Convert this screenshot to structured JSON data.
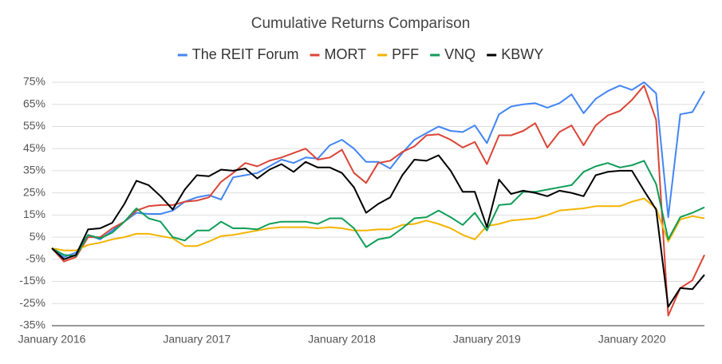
{
  "chart_data": {
    "type": "line",
    "title": "Cumulative Returns Comparison",
    "categories": [
      "January 2016",
      null,
      null,
      null,
      null,
      null,
      null,
      null,
      null,
      null,
      null,
      null,
      "January 2017",
      null,
      null,
      null,
      null,
      null,
      null,
      null,
      null,
      null,
      null,
      null,
      "January 2018",
      null,
      null,
      null,
      null,
      null,
      null,
      null,
      null,
      null,
      null,
      null,
      "January 2019",
      null,
      null,
      null,
      null,
      null,
      null,
      null,
      null,
      null,
      null,
      null,
      "January 2020",
      null,
      null,
      null,
      null,
      null,
      null
    ],
    "ylim": [
      -35,
      75
    ],
    "yticks": [
      {
        "value": -35,
        "label": "-35%"
      },
      {
        "value": -25,
        "label": "-25%"
      },
      {
        "value": -15,
        "label": "-15%"
      },
      {
        "value": -5,
        "label": "-5%"
      },
      {
        "value": 5,
        "label": "5%"
      },
      {
        "value": 15,
        "label": "15%"
      },
      {
        "value": 25,
        "label": "25%"
      },
      {
        "value": 35,
        "label": "35%"
      },
      {
        "value": 45,
        "label": "45%"
      },
      {
        "value": 55,
        "label": "55%"
      },
      {
        "value": 65,
        "label": "65%"
      },
      {
        "value": 75,
        "label": "75%"
      }
    ],
    "grid": true,
    "legend": "top",
    "series": [
      {
        "name": "The REIT Forum",
        "color": "#4285f4",
        "values": [
          0,
          -4,
          -2,
          6,
          4,
          8,
          12,
          16,
          15.5,
          15.5,
          17,
          21,
          23,
          24,
          22,
          32,
          33,
          34,
          37,
          40,
          38.5,
          41,
          40.5,
          46.5,
          49,
          45,
          39,
          39,
          36,
          43,
          49,
          52,
          55,
          53,
          52.5,
          55.5,
          47.5,
          60.5,
          64,
          65,
          65.5,
          63.5,
          65.5,
          69.5,
          61,
          67.5,
          71,
          73.5,
          71.5,
          75,
          70,
          14,
          60.5,
          61.5,
          71
        ]
      },
      {
        "name": "MORT",
        "color": "#db4437",
        "values": [
          0,
          -6,
          -4,
          5,
          5,
          9,
          12,
          17,
          19,
          19.5,
          19.5,
          21,
          21.5,
          23,
          30,
          34,
          38.5,
          37,
          39.5,
          41,
          43,
          45,
          40,
          41,
          44.5,
          34,
          29.5,
          38.5,
          39.5,
          43.5,
          46,
          51,
          51.5,
          49,
          45.5,
          48,
          38,
          51,
          51,
          53,
          56.5,
          45.5,
          52.5,
          55.5,
          46.5,
          55.5,
          60,
          62,
          67,
          73.5,
          58,
          -30.5,
          -18,
          -14.5,
          -3
        ]
      },
      {
        "name": "PFF",
        "color": "#f4b400",
        "values": [
          0,
          -1,
          -1,
          1.5,
          2.5,
          4,
          5,
          6.5,
          6.5,
          5.5,
          4.5,
          1,
          1,
          3,
          5.5,
          6,
          7,
          8,
          9,
          9.5,
          9.5,
          9.5,
          9,
          9.5,
          9,
          8,
          8,
          8.5,
          8.5,
          10.5,
          11,
          12.5,
          11,
          9,
          6,
          4,
          10,
          11,
          12.5,
          13,
          13.5,
          15,
          17,
          17.5,
          18,
          19,
          19,
          19,
          21,
          22.5,
          18,
          3,
          13,
          14.5,
          13.5
        ]
      },
      {
        "name": "VNQ",
        "color": "#0f9d58",
        "values": [
          0,
          -3,
          -3.5,
          6,
          4.5,
          7,
          12,
          18,
          13.5,
          12,
          5,
          3.5,
          8,
          8,
          12,
          9,
          9,
          8.5,
          11,
          12,
          12,
          12,
          11,
          13.5,
          13.5,
          9,
          0.5,
          4,
          5,
          9,
          13.5,
          14,
          17,
          14,
          10.5,
          16,
          8,
          19.5,
          20,
          25.5,
          25.5,
          26.5,
          27.5,
          28.5,
          34.5,
          37,
          38.5,
          36.5,
          37.5,
          39.5,
          29,
          4,
          14,
          16,
          18.5
        ]
      },
      {
        "name": "KBWY",
        "color": "#000000",
        "values": [
          0,
          -5,
          -3,
          8.5,
          9,
          11.5,
          20,
          30.5,
          28.5,
          23.5,
          17.5,
          26.5,
          33,
          32.5,
          35.5,
          35,
          36,
          31.5,
          35.5,
          38,
          34.5,
          39,
          36.5,
          36.5,
          34,
          27.5,
          16,
          20,
          23,
          33,
          40,
          39.5,
          42,
          35,
          25.5,
          25.5,
          9.5,
          31,
          24.5,
          26,
          25,
          23.5,
          26,
          25,
          23.5,
          33,
          34.5,
          35,
          35,
          26,
          17.5,
          -26.5,
          -18,
          -18.5,
          -12
        ]
      }
    ]
  }
}
